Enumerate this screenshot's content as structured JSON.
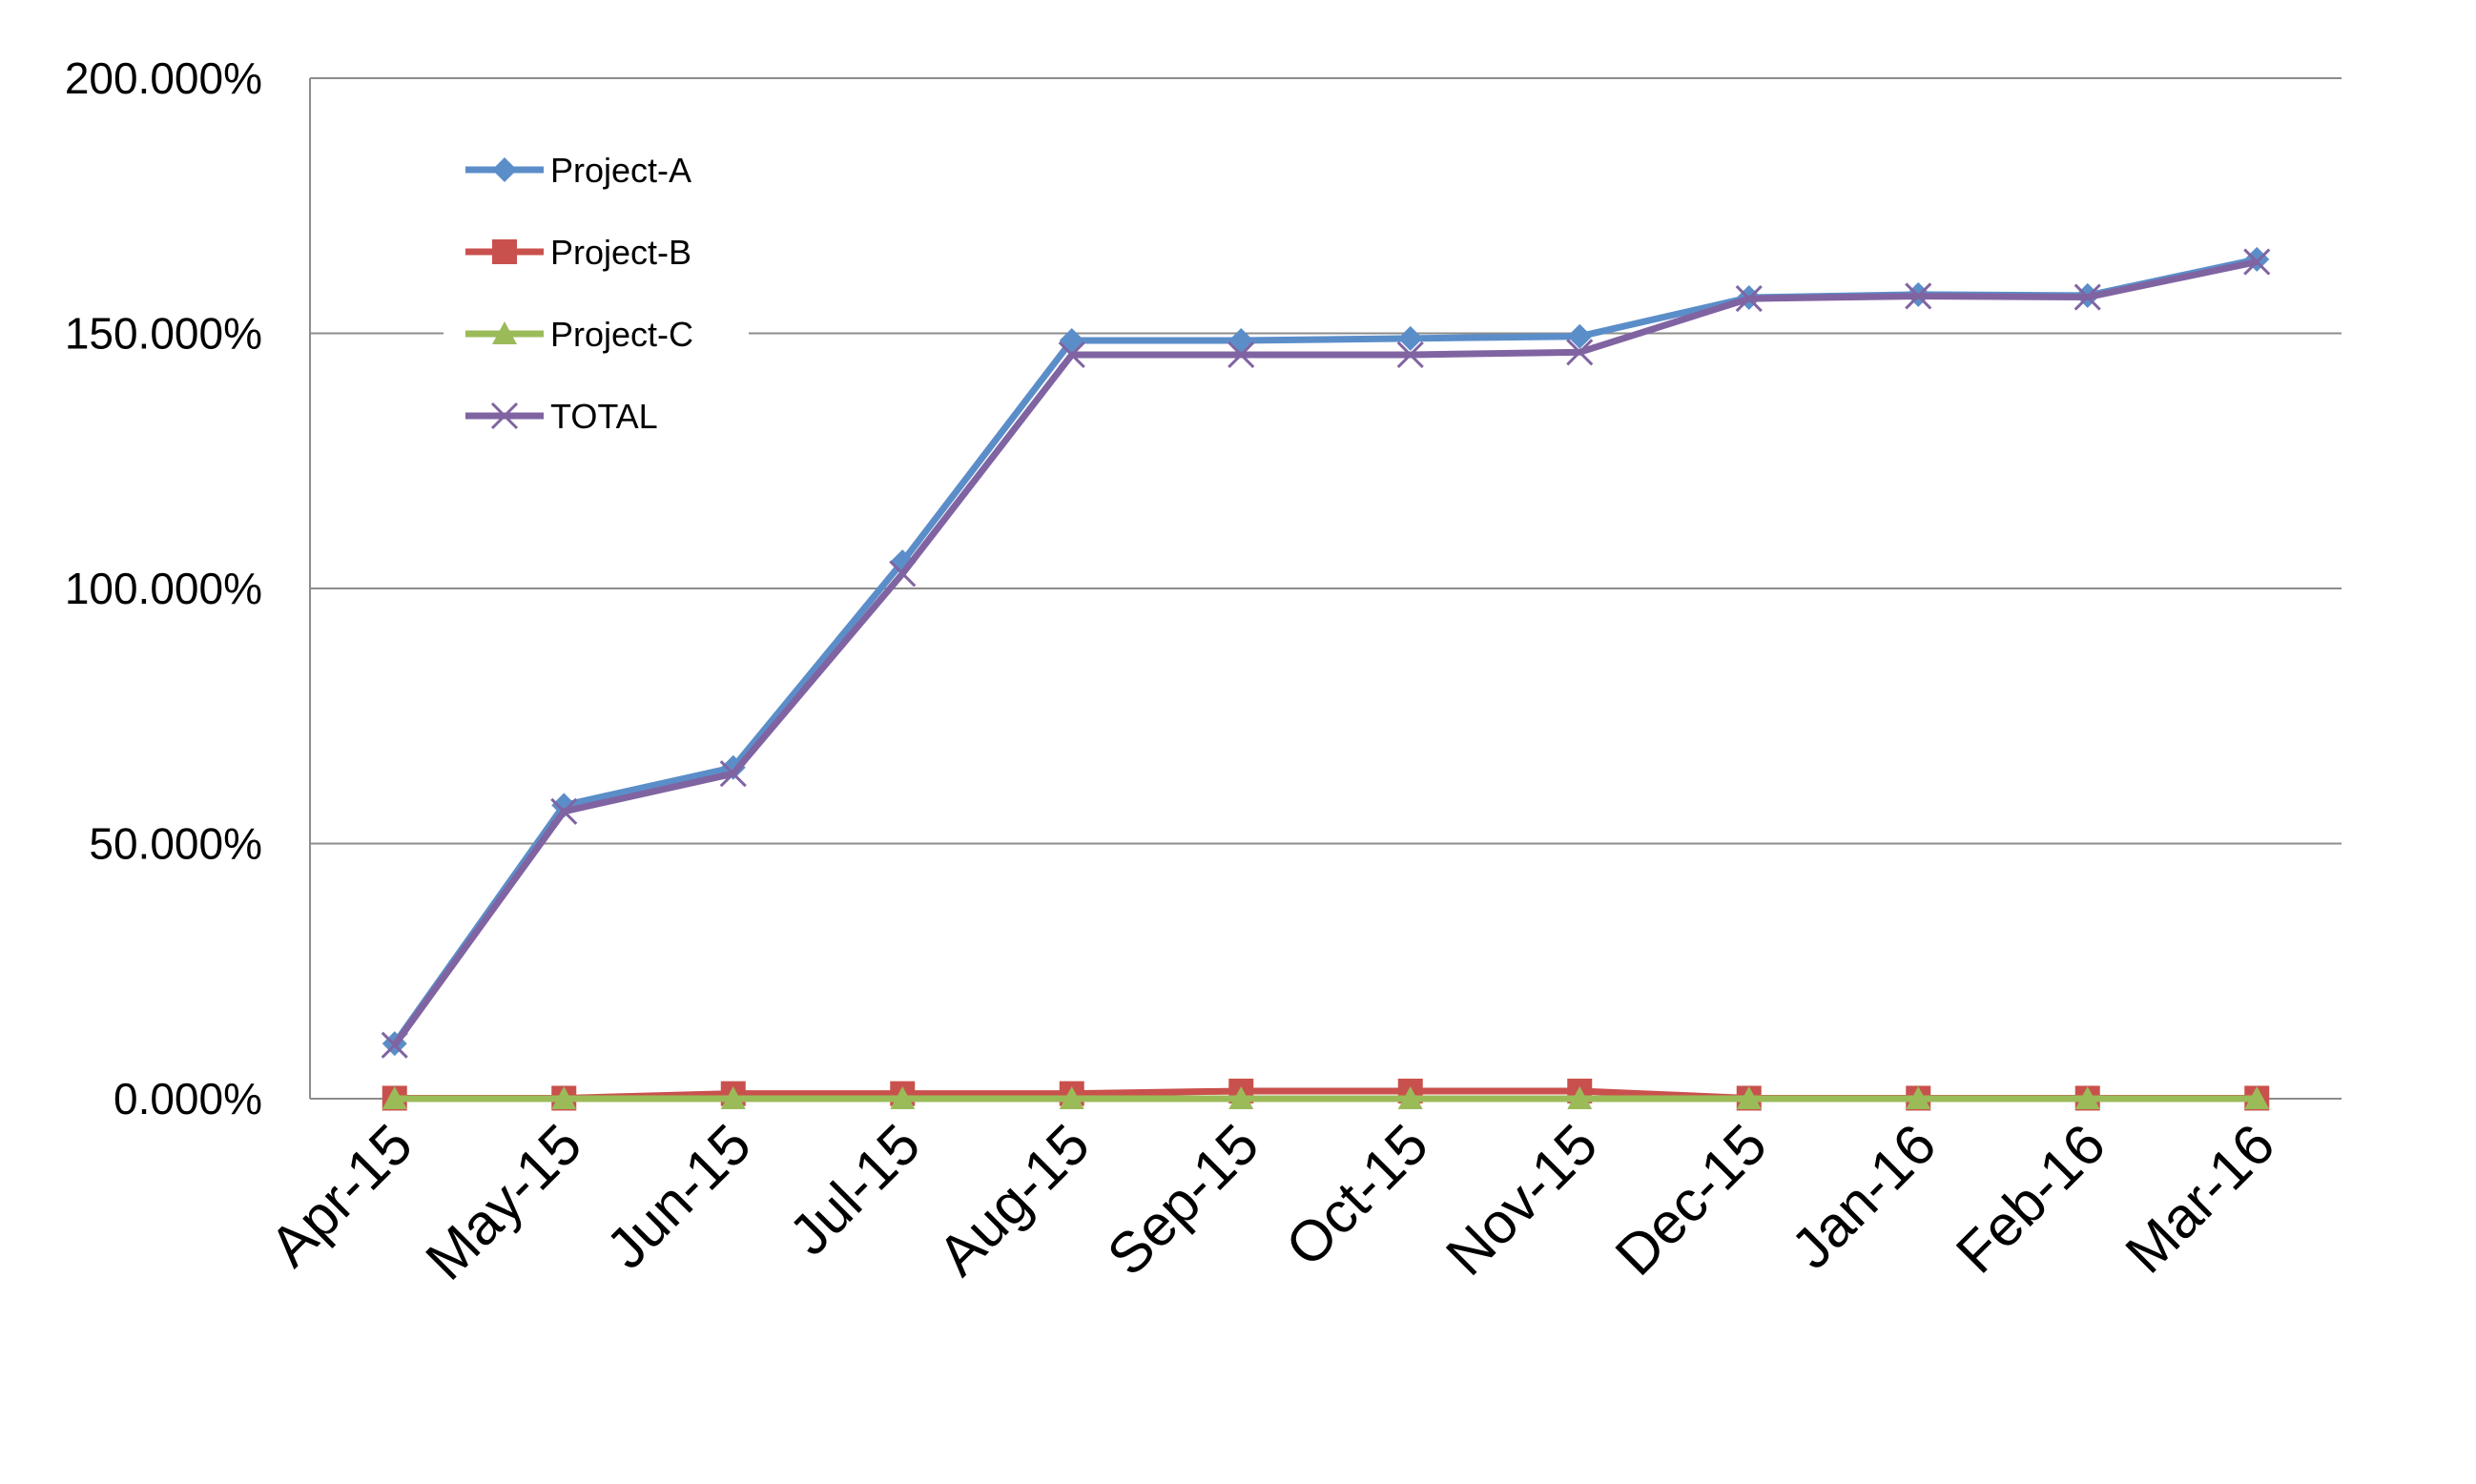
{
  "chart_data": {
    "type": "line",
    "title": "",
    "xlabel": "",
    "ylabel": "",
    "categories": [
      "Apr-15",
      "May-15",
      "Jun-15",
      "Jul-15",
      "Aug-15",
      "Sep-15",
      "Oct-15",
      "Nov-15",
      "Dec-15",
      "Jan-16",
      "Feb-16",
      "Mar-16"
    ],
    "y_ticks": [
      "0.000%",
      "50.000%",
      "100.000%",
      "150.000%",
      "200.000%"
    ],
    "ylim": [
      0,
      200
    ],
    "y_unit": "%",
    "grid": true,
    "legend_position": "top-left",
    "series": [
      {
        "name": "Project-A",
        "color": "#5b8ec9",
        "marker": "diamond",
        "values": [
          10.8,
          57.5,
          64.9,
          105.2,
          148.6,
          148.6,
          149.0,
          149.4,
          157.0,
          157.6,
          157.4,
          164.5
        ]
      },
      {
        "name": "Project-B",
        "color": "#c9514d",
        "marker": "square",
        "values": [
          0.1,
          0.1,
          1.0,
          1.0,
          1.0,
          1.5,
          1.5,
          1.5,
          0.1,
          0.1,
          0.1,
          0.1
        ]
      },
      {
        "name": "Project-C",
        "color": "#9bbb59",
        "marker": "triangle",
        "values": [
          0.0,
          0.0,
          0.0,
          0.0,
          0.0,
          0.0,
          0.0,
          0.0,
          0.0,
          0.0,
          0.0,
          0.0
        ]
      },
      {
        "name": "TOTAL",
        "color": "#8064a2",
        "marker": "x",
        "values": [
          10.5,
          56.3,
          63.7,
          102.9,
          145.8,
          145.8,
          145.8,
          146.3,
          156.8,
          157.3,
          157.1,
          164.0
        ]
      }
    ]
  }
}
